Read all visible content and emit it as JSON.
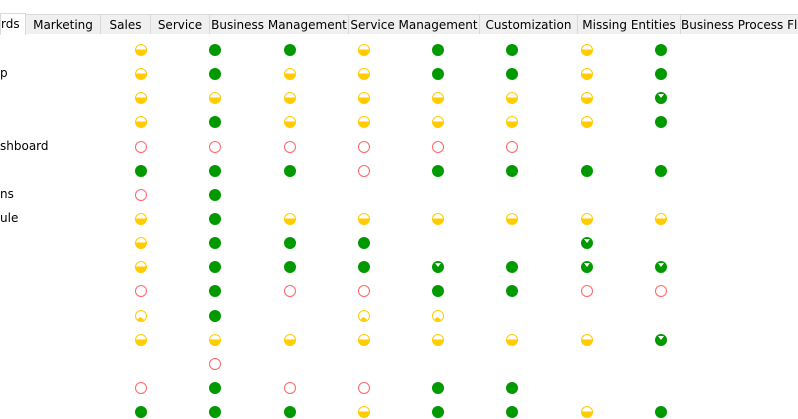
{
  "tabs": [
    {
      "label": "rds",
      "selected": true
    },
    {
      "label": "Marketing"
    },
    {
      "label": "Sales"
    },
    {
      "label": "Service"
    },
    {
      "label": "Business Management"
    },
    {
      "label": "Service Management"
    },
    {
      "label": "Customization"
    },
    {
      "label": "Missing Entities"
    },
    {
      "label": "Business Process Flows"
    }
  ],
  "status_legend": {
    "F": "full",
    "H": "half",
    "E": "empty",
    "M": "mostly",
    "Q": "quarter"
  },
  "colors": {
    "green": "#009900",
    "yellow": "#ffcc00",
    "red": "#ff6666"
  },
  "rows": [
    {
      "label": "",
      "status": [
        "H",
        "F",
        "F",
        "H",
        "F",
        "F",
        "H",
        "F"
      ]
    },
    {
      "label": "p",
      "status": [
        "H",
        "F",
        "H",
        "H",
        "F",
        "F",
        "H",
        "F"
      ]
    },
    {
      "label": "",
      "status": [
        "H",
        "H",
        "H",
        "H",
        "H",
        "H",
        "H",
        "M"
      ]
    },
    {
      "label": "",
      "status": [
        "H",
        "F",
        "H",
        "H",
        "H",
        "H",
        "H",
        "F"
      ]
    },
    {
      "label": "shboard",
      "status": [
        "E",
        "E",
        "E",
        "E",
        "E",
        "E",
        "",
        ""
      ]
    },
    {
      "label": "",
      "status": [
        "F",
        "F",
        "F",
        "E",
        "F",
        "F",
        "F",
        "F"
      ]
    },
    {
      "label": "ns",
      "status": [
        "E",
        "F",
        "",
        "",
        "",
        "",
        "",
        ""
      ]
    },
    {
      "label": "ule",
      "status": [
        "H",
        "F",
        "H",
        "H",
        "H",
        "H",
        "H",
        "H"
      ]
    },
    {
      "label": "",
      "status": [
        "H",
        "F",
        "F",
        "F",
        "",
        "",
        "M",
        ""
      ]
    },
    {
      "label": "",
      "status": [
        "H",
        "F",
        "F",
        "F",
        "M",
        "F",
        "M",
        "M"
      ]
    },
    {
      "label": "",
      "status": [
        "E",
        "F",
        "E",
        "E",
        "F",
        "F",
        "E",
        "E"
      ]
    },
    {
      "label": "",
      "status": [
        "Q",
        "F",
        "",
        "Q",
        "Q",
        "",
        "",
        ""
      ]
    },
    {
      "label": "",
      "status": [
        "H",
        "H",
        "H",
        "H",
        "H",
        "H",
        "H",
        "M"
      ]
    },
    {
      "label": "",
      "status": [
        "",
        "E",
        "",
        "",
        "",
        "",
        "",
        ""
      ]
    },
    {
      "label": "",
      "status": [
        "E",
        "F",
        "E",
        "E",
        "F",
        "F",
        "",
        ""
      ]
    },
    {
      "label": "",
      "status": [
        "F",
        "F",
        "F",
        "H",
        "F",
        "F",
        "H",
        "F"
      ]
    }
  ]
}
